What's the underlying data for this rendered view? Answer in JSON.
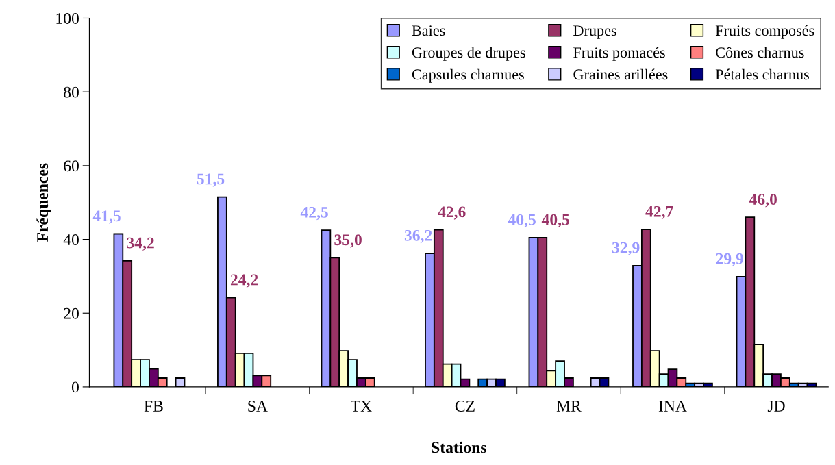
{
  "chart_data": {
    "type": "bar",
    "xlabel": "Stations",
    "ylabel": "Fréquences",
    "categories": [
      "FB",
      "SA",
      "TX",
      "CZ",
      "MR",
      "INA",
      "JD"
    ],
    "ylim": [
      0,
      100
    ],
    "yticks": [
      0,
      20,
      40,
      60,
      80,
      100
    ],
    "grid": false,
    "legend": "top right",
    "series": [
      {
        "name": "Baies",
        "color": "#9999ff",
        "values": [
          41.5,
          51.5,
          42.5,
          36.2,
          40.5,
          32.9,
          29.9
        ],
        "value_labels": [
          "41,5",
          "51,5",
          "42,5",
          "36,2",
          "40,5",
          "32,9",
          "29,9"
        ]
      },
      {
        "name": "Drupes",
        "color": "#993366",
        "values": [
          34.2,
          24.2,
          35.0,
          42.6,
          40.5,
          42.7,
          46.0
        ],
        "value_labels": [
          "34,2",
          "24,2",
          "35,0",
          "42,6",
          "40,5",
          "42,7",
          "46,0"
        ]
      },
      {
        "name": "Fruits composés",
        "color": "#ffffcc",
        "values": [
          7.4,
          9.1,
          9.8,
          6.2,
          4.4,
          9.8,
          11.5
        ]
      },
      {
        "name": "Groupes de drupes",
        "color": "#ccffff",
        "values": [
          7.4,
          9.1,
          7.4,
          6.2,
          7.0,
          3.5,
          3.5
        ]
      },
      {
        "name": "Fruits pomacés",
        "color": "#660066",
        "values": [
          4.9,
          3.1,
          2.4,
          2.1,
          2.4,
          4.8,
          3.5
        ]
      },
      {
        "name": "Cônes charnus",
        "color": "#ff8080",
        "values": [
          2.4,
          3.1,
          2.4,
          0,
          0,
          2.4,
          2.4
        ]
      },
      {
        "name": "Capsules charnues",
        "color": "#0066cc",
        "values": [
          0,
          0,
          0,
          2.1,
          0,
          1.0,
          1.0
        ]
      },
      {
        "name": "Graines arillées",
        "color": "#ccccff",
        "values": [
          2.4,
          0,
          0,
          2.1,
          2.4,
          1.0,
          1.0
        ]
      },
      {
        "name": "Pétales charnus",
        "color": "#000080",
        "values": [
          0,
          0,
          0,
          2.1,
          2.4,
          1.0,
          1.0
        ]
      }
    ]
  }
}
